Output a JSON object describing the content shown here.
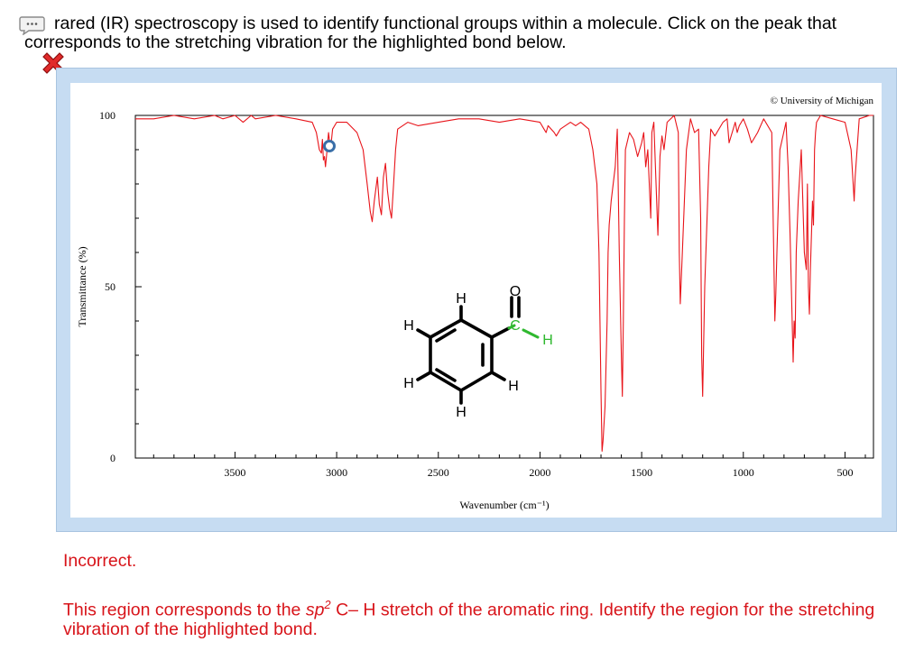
{
  "question": {
    "text": "rared (IR) spectroscopy is used to identify functional groups within a molecule. Click on the peak that corresponds to the stretching vibration for the highlighted bond below."
  },
  "icons": {
    "chat": "chat-bubble-icon",
    "incorrect": "red-x-icon"
  },
  "colors": {
    "spectrum": "#e8141a",
    "highlight_bond": "#2fb82f",
    "feedback": "#d8141a",
    "panel": "#c6dcf2",
    "marker": "#3a6fa8"
  },
  "chart_data": {
    "type": "line",
    "copyright": "© University of Michigan",
    "xlabel": "Wavenumber (cm⁻¹)",
    "ylabel": "Transmittance (%)",
    "x_reversed": true,
    "xlim": [
      3990,
      360
    ],
    "ylim": [
      0,
      100
    ],
    "x_ticks": [
      3500,
      3000,
      2500,
      2000,
      1500,
      1000,
      500
    ],
    "y_ticks": [
      0,
      50,
      100
    ],
    "series": [
      {
        "x": [
          3990,
          3900,
          3800,
          3700,
          3600,
          3560,
          3500,
          3460,
          3420,
          3400,
          3300,
          3200,
          3120,
          3100,
          3085,
          3075,
          3070,
          3065,
          3060,
          3055,
          3050,
          3040,
          3030,
          3020,
          3000,
          2950,
          2900,
          2870,
          2850,
          2835,
          2825,
          2815,
          2800,
          2790,
          2780,
          2770,
          2760,
          2750,
          2740,
          2730,
          2720,
          2710,
          2700,
          2650,
          2600,
          2500,
          2400,
          2300,
          2200,
          2100,
          2000,
          1980,
          1970,
          1960,
          1930,
          1920,
          1900,
          1850,
          1825,
          1800,
          1760,
          1740,
          1720,
          1710,
          1705,
          1700,
          1695,
          1690,
          1680,
          1670,
          1665,
          1660,
          1650,
          1630,
          1620,
          1610,
          1600,
          1595,
          1590,
          1585,
          1580,
          1560,
          1540,
          1520,
          1500,
          1490,
          1480,
          1470,
          1455,
          1450,
          1440,
          1420,
          1410,
          1400,
          1390,
          1375,
          1340,
          1320,
          1315,
          1310,
          1300,
          1280,
          1260,
          1240,
          1220,
          1210,
          1205,
          1200,
          1190,
          1170,
          1160,
          1140,
          1100,
          1080,
          1070,
          1040,
          1030,
          1020,
          1000,
          980,
          960,
          930,
          900,
          860,
          845,
          840,
          835,
          820,
          790,
          780,
          770,
          760,
          755,
          750,
          745,
          740,
          730,
          715,
          700,
          690,
          685,
          680,
          675,
          670,
          660,
          655,
          650,
          645,
          640,
          620,
          560,
          500,
          470,
          460,
          455,
          450,
          430,
          380,
          360
        ],
        "y": [
          99,
          99,
          100,
          99,
          100,
          99,
          100,
          98,
          100,
          99,
          100,
          99,
          98,
          95,
          90,
          89,
          93,
          87,
          88,
          85,
          88,
          95,
          90,
          96,
          98,
          98,
          95,
          90,
          80,
          72,
          69,
          75,
          82,
          74,
          71,
          82,
          86,
          78,
          73,
          70,
          80,
          90,
          96,
          98,
          97,
          98,
          99,
          99,
          98,
          99,
          98,
          96,
          95,
          97,
          95,
          94,
          96,
          98,
          97,
          98,
          96,
          90,
          80,
          60,
          40,
          20,
          2,
          5,
          15,
          40,
          60,
          68,
          75,
          85,
          96,
          60,
          30,
          18,
          40,
          70,
          90,
          95,
          93,
          88,
          92,
          95,
          85,
          90,
          70,
          95,
          98,
          65,
          88,
          94,
          90,
          98,
          100,
          95,
          60,
          45,
          60,
          90,
          99,
          95,
          96,
          70,
          30,
          18,
          50,
          85,
          96,
          94,
          98,
          99,
          92,
          98,
          95,
          97,
          99,
          96,
          92,
          95,
          99,
          95,
          40,
          48,
          60,
          90,
          98,
          85,
          65,
          40,
          28,
          40,
          35,
          60,
          75,
          90,
          60,
          55,
          80,
          50,
          42,
          55,
          75,
          68,
          90,
          95,
          98,
          100,
          99,
          98,
          90,
          80,
          75,
          82,
          99,
          100,
          100
        ]
      }
    ]
  },
  "molecule": {
    "atoms": [
      "H",
      "H",
      "H",
      "H",
      "H",
      "C",
      "O",
      "H"
    ]
  },
  "feedback": {
    "title": "Incorrect.",
    "msg_before": "This region corresponds to the ",
    "sp": "sp",
    "sup": "2",
    "msg_after": " C– H stretch of the aromatic ring. Identify the region for the stretching vibration of the highlighted bond."
  }
}
